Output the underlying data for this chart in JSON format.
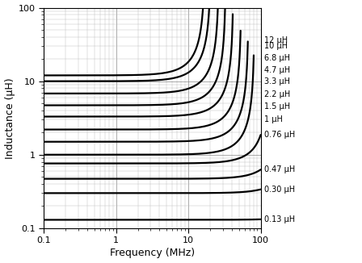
{
  "xlabel": "Frequency (MHz)",
  "ylabel": "Inductance (μH)",
  "xlim": [
    0.1,
    100
  ],
  "ylim": [
    0.1,
    100
  ],
  "series": [
    {
      "label": "12 μH",
      "L0": 12.0,
      "fr": 17.0
    },
    {
      "label": "10 μH",
      "L0": 10.0,
      "fr": 20.5
    },
    {
      "label": "6.8 μH",
      "L0": 6.8,
      "fr": 26.5
    },
    {
      "label": "4.7 μH",
      "L0": 4.7,
      "fr": 33.0
    },
    {
      "label": "3.3 μH",
      "L0": 3.3,
      "fr": 42.0
    },
    {
      "label": "2.2 μH",
      "L0": 2.2,
      "fr": 54.0
    },
    {
      "label": "1.5 μH",
      "L0": 1.5,
      "fr": 68.0
    },
    {
      "label": "1 μH",
      "L0": 1.0,
      "fr": 82.0
    },
    {
      "label": "0.76 μH",
      "L0": 0.76,
      "fr": 130.0
    },
    {
      "label": "0.47 μH",
      "L0": 0.47,
      "fr": 200.0
    },
    {
      "label": "0.30 μH",
      "L0": 0.3,
      "fr": 300.0
    },
    {
      "label": "0.13 μH",
      "L0": 0.13,
      "fr": 800.0
    }
  ],
  "label_x_data": [
    100,
    100,
    100,
    100,
    100,
    100,
    100,
    100,
    100,
    100,
    100,
    100
  ],
  "line_color": "#000000",
  "line_width": 1.6,
  "label_fontsize": 7.0,
  "grid_major_color": "#888888",
  "grid_minor_color": "#bbbbbb",
  "bg_color": "#ffffff"
}
